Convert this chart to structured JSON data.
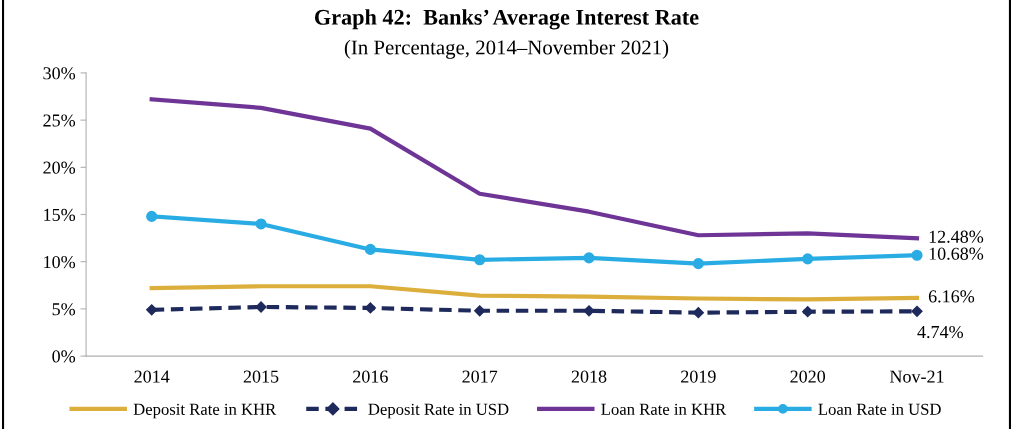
{
  "chart_data": {
    "type": "line",
    "title": "Graph 42:  Banks’ Average Interest Rate",
    "subtitle": "(In Percentage, 2014–November 2021)",
    "categories": [
      "2014",
      "2015",
      "2016",
      "2017",
      "2018",
      "2019",
      "2020",
      "Nov-21"
    ],
    "series": [
      {
        "name": "Deposit Rate in KHR",
        "color": "#dcae3c",
        "marker": "none",
        "line_style": "solid",
        "values": [
          7.2,
          7.4,
          7.4,
          6.4,
          6.3,
          6.1,
          6.0,
          6.16
        ],
        "value_labels": [
          null,
          null,
          null,
          null,
          null,
          null,
          null,
          "6.16%"
        ]
      },
      {
        "name": "Deposit Rate in USD",
        "color": "#1f2a5c",
        "marker": "diamond",
        "line_style": "dashed",
        "values": [
          4.9,
          5.2,
          5.1,
          4.8,
          4.8,
          4.6,
          4.7,
          4.74
        ],
        "value_labels": [
          null,
          null,
          null,
          null,
          null,
          null,
          null,
          "4.74%"
        ]
      },
      {
        "name": "Loan Rate in KHR",
        "color": "#6e3596",
        "marker": "none",
        "line_style": "solid",
        "values": [
          27.2,
          26.3,
          24.1,
          17.2,
          15.3,
          12.8,
          13.0,
          12.48
        ],
        "value_labels": [
          null,
          null,
          null,
          null,
          null,
          null,
          null,
          "12.48%"
        ]
      },
      {
        "name": "Loan Rate in USD",
        "color": "#29ace3",
        "marker": "circle",
        "line_style": "solid",
        "values": [
          14.8,
          14.0,
          11.3,
          10.2,
          10.4,
          9.8,
          10.3,
          10.68
        ],
        "value_labels": [
          null,
          null,
          null,
          null,
          null,
          null,
          null,
          "10.68%"
        ]
      }
    ],
    "ylim": [
      0,
      30
    ],
    "yticks": [
      {
        "value": 0,
        "label": "0%"
      },
      {
        "value": 5,
        "label": "5%"
      },
      {
        "value": 10,
        "label": "10%"
      },
      {
        "value": 15,
        "label": "15%"
      },
      {
        "value": 20,
        "label": "20%"
      },
      {
        "value": 25,
        "label": "25%"
      },
      {
        "value": 30,
        "label": "30%"
      }
    ],
    "grid": false,
    "legend": "bottom"
  }
}
